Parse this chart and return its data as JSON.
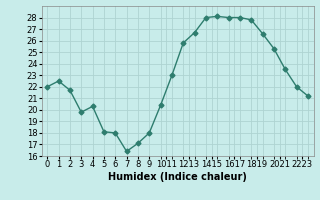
{
  "x": [
    0,
    1,
    2,
    3,
    4,
    5,
    6,
    7,
    8,
    9,
    10,
    11,
    12,
    13,
    14,
    15,
    16,
    17,
    18,
    19,
    20,
    21,
    22,
    23
  ],
  "y": [
    22.0,
    22.5,
    21.7,
    19.8,
    20.3,
    18.1,
    18.0,
    16.4,
    17.1,
    18.0,
    20.4,
    23.0,
    25.8,
    26.7,
    28.0,
    28.1,
    28.0,
    28.0,
    27.8,
    26.6,
    25.3,
    23.5,
    22.0,
    21.2
  ],
  "line_color": "#2e7d6e",
  "marker": "D",
  "marker_size": 2.5,
  "bg_color": "#c8ecea",
  "grid_color": "#aed4d2",
  "xlabel": "Humidex (Indice chaleur)",
  "ylim": [
    16,
    29
  ],
  "xlim": [
    -0.5,
    23.5
  ],
  "yticks": [
    16,
    17,
    18,
    19,
    20,
    21,
    22,
    23,
    24,
    25,
    26,
    27,
    28
  ],
  "xtick_labels": [
    "0",
    "1",
    "2",
    "3",
    "4",
    "5",
    "6",
    "7",
    "8",
    "9",
    "1011",
    "1213",
    "1415",
    "1617",
    "1819",
    "2021",
    "2223"
  ],
  "xtick_positions": [
    0,
    1,
    2,
    3,
    4,
    5,
    6,
    7,
    8,
    9,
    10.5,
    12.5,
    14.5,
    16.5,
    18.5,
    20.5,
    22.5
  ],
  "xlabel_fontsize": 7,
  "tick_fontsize": 6,
  "line_width": 1.0
}
